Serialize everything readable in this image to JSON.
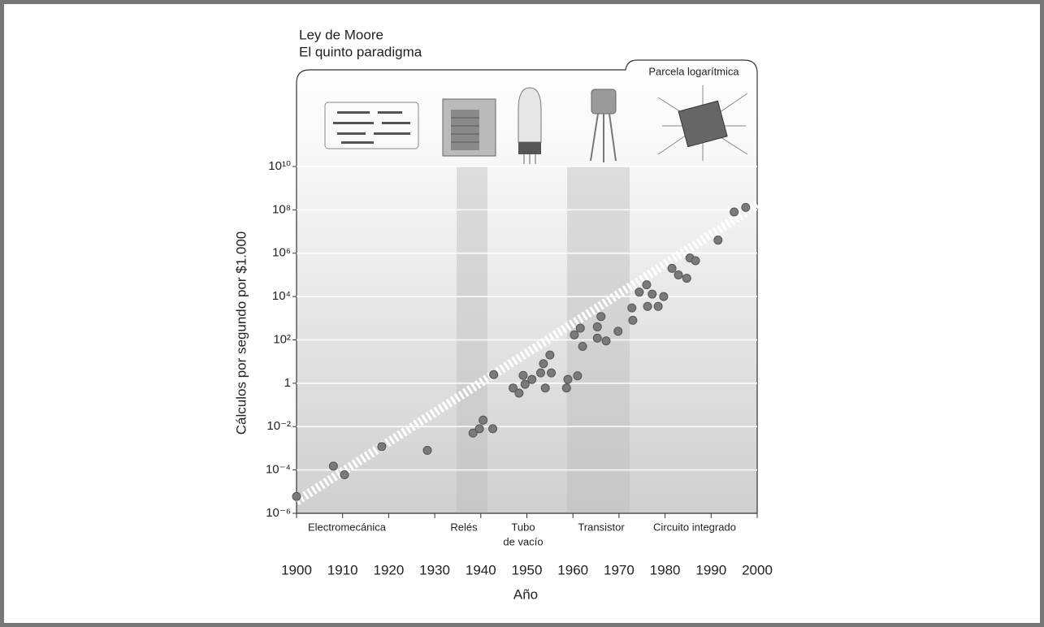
{
  "chart_data": {
    "type": "scatter",
    "title": "Ley de Moore",
    "subtitle": "El quinto paradigma",
    "annotation": "Parcela logarítmica",
    "y_label": "Cálculos por segundo por $1.000",
    "x_label": "Año",
    "log_scale": true,
    "grid": true,
    "color": "#7a7a7a",
    "xlim": [
      1900,
      2000
    ],
    "xticks": [
      1900,
      1910,
      1920,
      1930,
      1940,
      1950,
      1960,
      1970,
      1980,
      1990,
      2000
    ],
    "ylim": [
      1e-06,
      10000000000.0
    ],
    "yticks": [
      {
        "value": 1e-06,
        "label": "10⁻⁶"
      },
      {
        "value": 0.0001,
        "label": "10⁻⁴"
      },
      {
        "value": 0.01,
        "label": "10⁻²"
      },
      1,
      {
        "value": 100,
        "label": "10²"
      },
      {
        "value": 10000,
        "label": "10⁴"
      },
      {
        "value": 1000000,
        "label": "10⁶"
      },
      {
        "value": 100000000,
        "label": "10⁸"
      },
      {
        "value": 10000000000,
        "label": "10¹⁰"
      }
    ],
    "eras": [
      "Electromecánica",
      "Relés",
      "Tubo",
      "de vacío",
      "Transistor",
      "Circuito integrado"
    ],
    "x": [
      1900,
      1908,
      1910.4,
      1918.5,
      1928.4,
      1938.3,
      1939.7,
      1940.5,
      1942.6,
      1942.8,
      1947,
      1948.3,
      1949.2,
      1949.6,
      1951.1,
      1953,
      1953.6,
      1954,
      1955,
      1955.3,
      1958.6,
      1958.9,
      1960.3,
      1961,
      1961.6,
      1962.1,
      1965.3,
      1965.3,
      1966.1,
      1967.2,
      1969.8,
      1972.8,
      1973,
      1974.4,
      1976,
      1976.2,
      1977.2,
      1978.5,
      1979.7,
      1981.5,
      1982.9,
      1984.7,
      1985.4,
      1986.6,
      1991.5,
      1995,
      1997.5
    ],
    "values": [
      6e-06,
      0.00015,
      6e-05,
      0.0012,
      0.0008,
      0.005,
      0.008,
      0.02,
      0.008,
      2.5,
      0.6,
      0.35,
      2.3,
      0.9,
      1.5,
      3,
      8,
      0.6,
      20,
      3,
      0.6,
      1.5,
      170,
      2.2,
      350,
      50,
      400,
      120,
      1200,
      90,
      250,
      3000,
      800,
      16000,
      35000,
      3500,
      13000,
      3500,
      10000,
      200000,
      100000,
      70000,
      600000,
      450000,
      4000000,
      80000000,
      130000000
    ],
    "trend": {
      "x": [
        1900,
        2000
      ],
      "values": [
        3.6e-06,
        170000000
      ]
    }
  }
}
